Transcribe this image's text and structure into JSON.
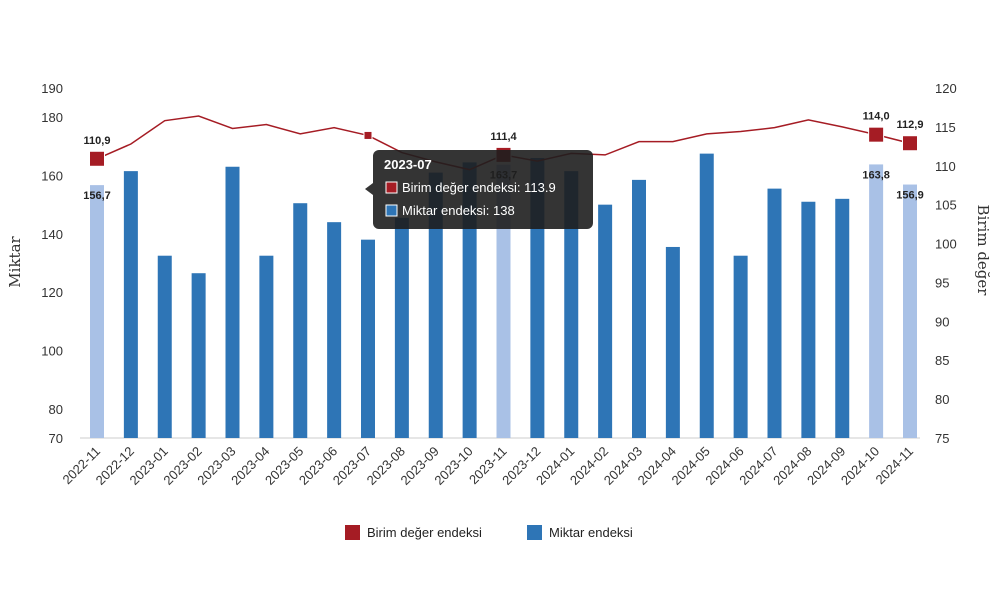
{
  "chart_data": {
    "type": "bar",
    "categories": [
      "2022-11",
      "2022-12",
      "2023-01",
      "2023-02",
      "2023-03",
      "2023-04",
      "2023-05",
      "2023-06",
      "2023-07",
      "2023-08",
      "2023-09",
      "2023-10",
      "2023-11",
      "2023-12",
      "2024-01",
      "2024-02",
      "2024-03",
      "2024-04",
      "2024-05",
      "2024-06",
      "2024-07",
      "2024-08",
      "2024-09",
      "2024-10",
      "2024-11"
    ],
    "ylabel": "Miktar",
    "y2label": "Birim değer",
    "ylim": [
      70,
      190
    ],
    "y2lim": [
      75,
      120
    ],
    "yticks": [
      "190",
      "180",
      "160",
      "140",
      "120",
      "100",
      "80",
      "70"
    ],
    "y2ticks": [
      "120",
      "115",
      "110",
      "105",
      "100",
      "95",
      "90",
      "85",
      "80",
      "75"
    ],
    "series": [
      {
        "name": "Miktar endeksi",
        "type": "bar",
        "color": "#2e75b6",
        "highlight_color": "#a9c1e6",
        "highlighted": [
          "2022-11",
          "2023-11",
          "2024-10",
          "2024-11"
        ],
        "values": [
          156.7,
          161.5,
          132.5,
          126.5,
          163,
          132.5,
          150.5,
          144,
          138,
          145.5,
          161,
          164.5,
          163.7,
          166,
          161.5,
          150,
          158.5,
          135.5,
          167.5,
          132.5,
          155.5,
          151,
          152,
          163.8,
          156.9
        ]
      },
      {
        "name": "Birim değer endeksi",
        "type": "line",
        "axis": "right",
        "color": "#a51c24",
        "values": [
          110.9,
          112.8,
          115.8,
          116.4,
          114.8,
          115.3,
          114.1,
          114.9,
          113.9,
          111.7,
          110.5,
          109.5,
          111.4,
          110.6,
          111.6,
          111.4,
          113.1,
          113.1,
          114.1,
          114.4,
          114.9,
          115.9,
          115.0,
          114.0,
          112.9
        ]
      }
    ],
    "data_labels": [
      {
        "category": "2022-11",
        "bar": "156,7",
        "line": "110,9"
      },
      {
        "category": "2023-11",
        "bar": "163,7",
        "line": "111,4"
      },
      {
        "category": "2024-10",
        "bar": "163,8",
        "line": "114,0"
      },
      {
        "category": "2024-11",
        "bar": "156,9",
        "line": "112,9"
      }
    ],
    "legend": {
      "position": "bottom",
      "items": [
        "Birim değer endeksi",
        "Miktar endeksi"
      ]
    },
    "tooltip": {
      "category": "2023-07",
      "title": "2023-07",
      "lines": [
        "Birim değer endeksi: 113.9",
        "Miktar endeksi: 138"
      ]
    }
  }
}
